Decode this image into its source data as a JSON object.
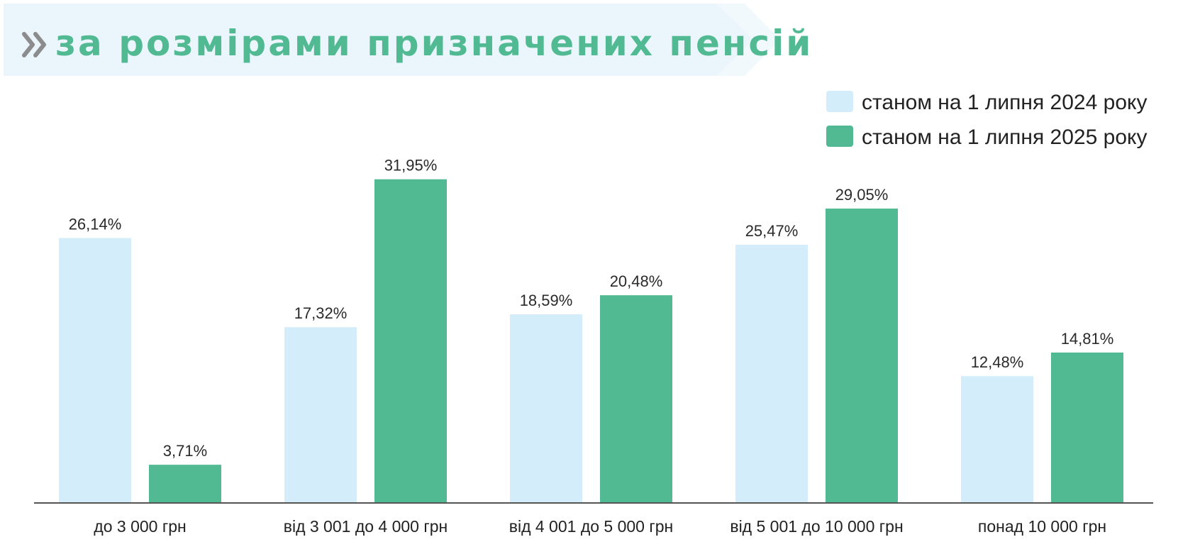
{
  "colors": {
    "series_2024": "#d3edfa",
    "series_2025": "#52ba93",
    "title_text": "#52ba93",
    "title_banner": "#eaf5fc",
    "chevron": "#8c8c8c",
    "axis": "#555555"
  },
  "header": {
    "icon": "double-chevron-right-icon",
    "title": "за розмірами призначених пенсій"
  },
  "chart_data": {
    "type": "bar",
    "title": "за розмірами призначених пенсій",
    "xlabel": "",
    "ylabel": "",
    "grid": false,
    "legend_position": "top-right",
    "categories": [
      "до 3 000 грн",
      "від 3 001 до 4 000 грн",
      "від 4 001 до 5 000 грн",
      "від 5 001 до 10 000 грн",
      "понад 10 000 грн"
    ],
    "series": [
      {
        "name": "станом на 1 липня 2024 року",
        "values": [
          26.14,
          17.32,
          18.59,
          25.47,
          12.48
        ],
        "labels": [
          "26,14%",
          "17,32%",
          "18,59%",
          "25,47%",
          "12,48%"
        ]
      },
      {
        "name": "станом на 1 липня 2025 року",
        "values": [
          3.71,
          31.95,
          20.48,
          29.05,
          14.81
        ],
        "labels": [
          "3,71%",
          "31,95%",
          "20,48%",
          "29,05%",
          "14,81%"
        ]
      }
    ],
    "ylim": [
      0,
      32
    ]
  }
}
